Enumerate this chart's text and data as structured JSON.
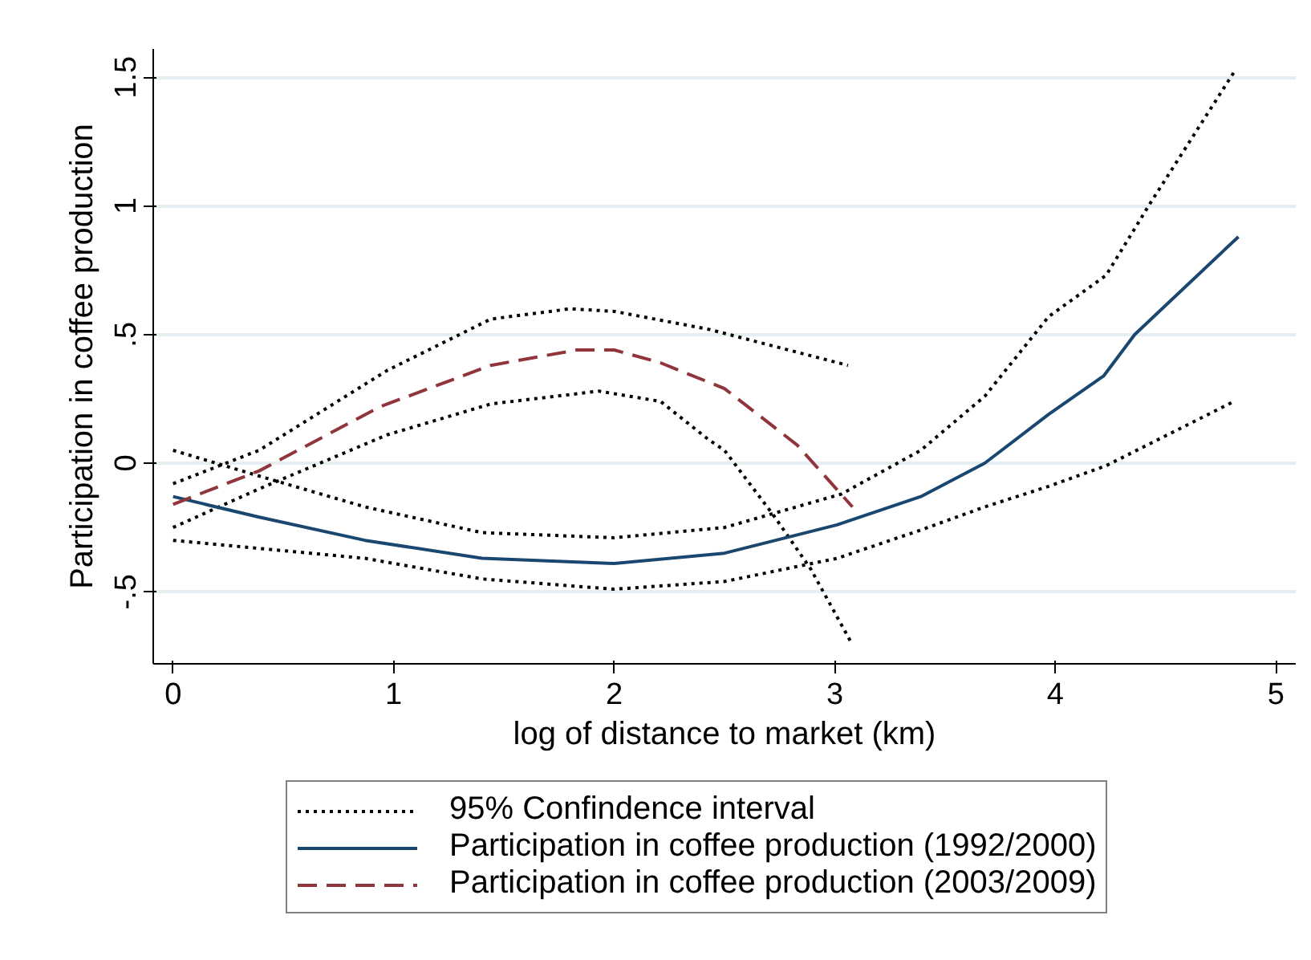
{
  "chart_data": {
    "type": "line",
    "xlabel": "log of distance to market (km)",
    "ylabel": "Participation in coffee production",
    "xlim": [
      -0.09,
      5.09
    ],
    "ylim": [
      -0.78,
      1.61
    ],
    "xticks": [
      0,
      1,
      2,
      3,
      4,
      5
    ],
    "yticks": [
      {
        "value": -0.5,
        "label": "-.5"
      },
      0,
      {
        "value": 0.5,
        "label": ".5"
      },
      1,
      1.5
    ],
    "grid": "y",
    "legend": "bottom",
    "series": [
      {
        "name": "95% Confindence interval",
        "color": "#000000",
        "line_style": "dotted",
        "x": [
          0,
          0.39,
          0.87,
          1.4,
          2.0,
          2.5,
          3.03,
          3.39,
          3.68,
          3.97,
          4.23,
          4.43,
          4.81
        ],
        "values": [
          0.05,
          -0.05,
          -0.17,
          -0.27,
          -0.29,
          -0.25,
          -0.12,
          0.05,
          0.26,
          0.57,
          0.73,
          1.01,
          1.52
        ]
      },
      {
        "color": "#000000",
        "line_style": "dotted",
        "x": [
          0,
          0.87,
          1.4,
          2.0,
          2.5,
          3.01,
          3.39,
          3.68,
          3.97,
          4.23,
          4.81
        ],
        "values": [
          -0.3,
          -0.37,
          -0.45,
          -0.49,
          -0.46,
          -0.37,
          -0.26,
          -0.17,
          -0.09,
          -0.01,
          0.24
        ]
      },
      {
        "color": "#000000",
        "line_style": "dotted",
        "x": [
          0,
          0.39,
          0.97,
          1.44,
          1.8,
          2.0,
          2.43,
          3.06
        ],
        "values": [
          -0.08,
          0.05,
          0.36,
          0.56,
          0.6,
          0.59,
          0.52,
          0.38
        ]
      },
      {
        "color": "#000000",
        "line_style": "dotted",
        "x": [
          0,
          0.39,
          0.97,
          1.44,
          1.93,
          2.21,
          2.43,
          2.5,
          2.72,
          2.89,
          3.07
        ],
        "values": [
          -0.25,
          -0.1,
          0.11,
          0.23,
          0.28,
          0.24,
          0.09,
          0.05,
          -0.2,
          -0.41,
          -0.69
        ]
      },
      {
        "name": "Participation in coffee production (1992/2000)",
        "color": "#1a476f",
        "line_style": "solid",
        "x": [
          0,
          0.39,
          0.87,
          1.4,
          2.0,
          2.5,
          3.01,
          3.39,
          3.68,
          3.97,
          4.22,
          4.36,
          4.83
        ],
        "values": [
          -0.13,
          -0.21,
          -0.3,
          -0.37,
          -0.39,
          -0.35,
          -0.24,
          -0.13,
          0.0,
          0.19,
          0.34,
          0.5,
          0.88
        ]
      },
      {
        "name": "Participation in coffee production (2003/2009)",
        "color": "#90353b",
        "line_style": "dashed",
        "x": [
          0,
          0.39,
          0.94,
          1.44,
          1.83,
          2.0,
          2.21,
          2.5,
          2.83,
          3.08
        ],
        "values": [
          -0.16,
          -0.03,
          0.22,
          0.38,
          0.44,
          0.44,
          0.39,
          0.29,
          0.07,
          -0.17
        ]
      }
    ]
  }
}
